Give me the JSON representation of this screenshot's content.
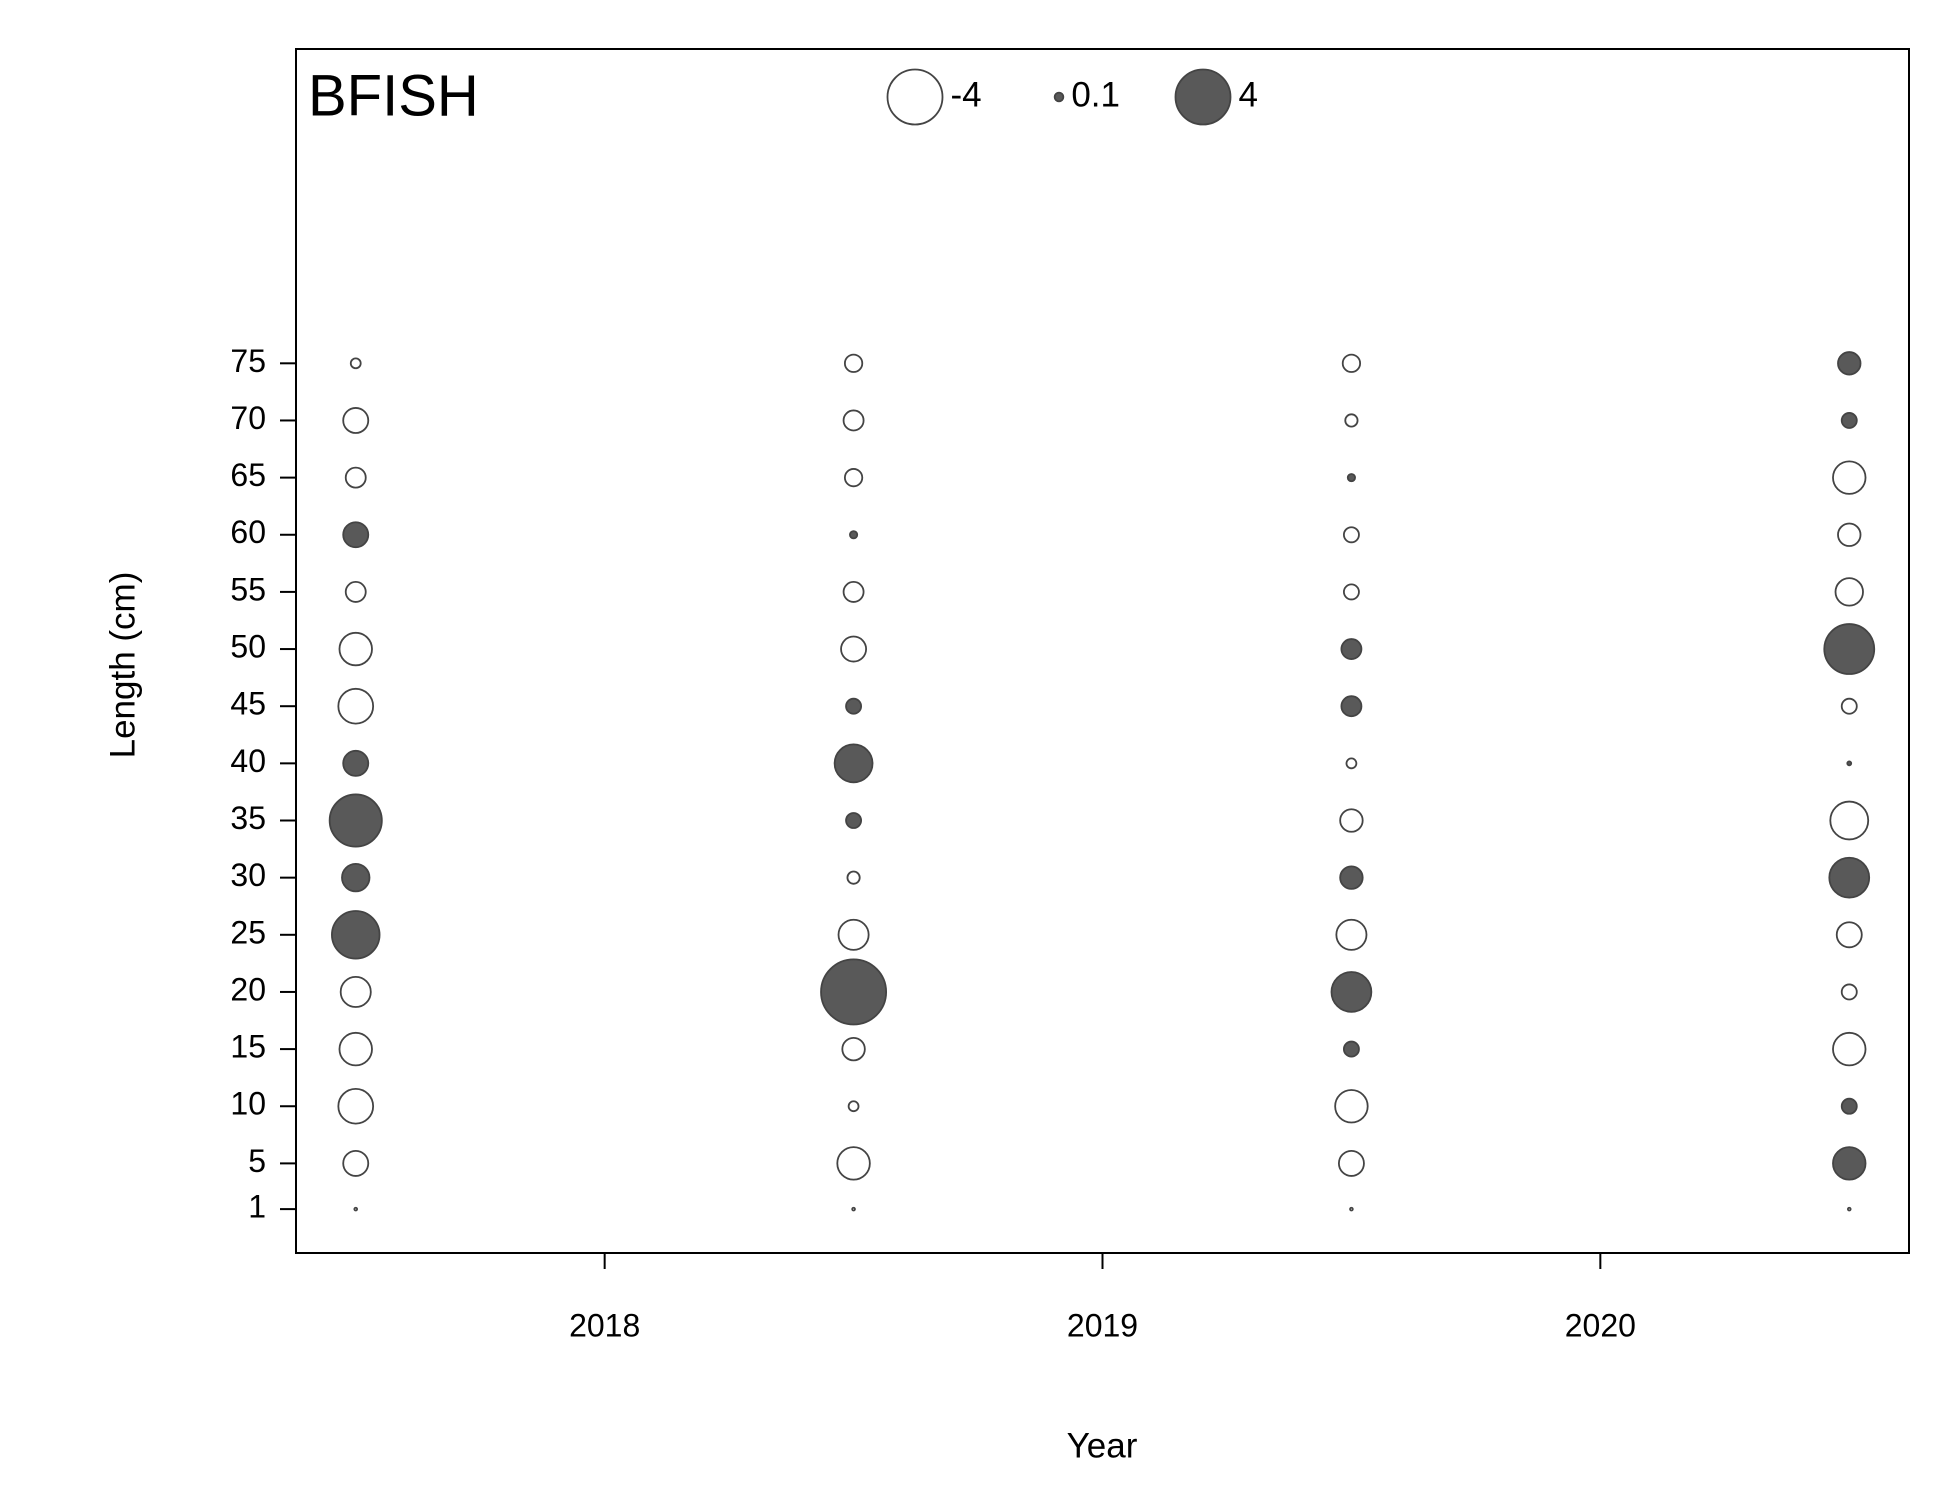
{
  "chart_data": {
    "type": "bubble",
    "title": "BFISH",
    "x_label": "Year",
    "y_label": "Length (cm)",
    "xlim": [
      2017.38,
      2020.62
    ],
    "xticks": [
      2018,
      2019,
      2020
    ],
    "ylim": [
      -2.84,
      102.5
    ],
    "yticks": [
      1,
      5,
      10,
      15,
      20,
      25,
      30,
      35,
      40,
      45,
      50,
      55,
      60,
      65,
      70,
      75
    ],
    "positive_color": "#595959",
    "negative_color": "#ffffff",
    "legend": {
      "values": [
        -4,
        0.1,
        4
      ]
    },
    "series": [
      {
        "x": [
          2017.5,
          2017.5,
          2017.5,
          2017.5,
          2017.5,
          2017.5,
          2017.5,
          2017.5,
          2017.5,
          2017.5,
          2017.5,
          2017.5,
          2017.5,
          2017.5,
          2017.5,
          2017.5,
          2018.5,
          2018.5,
          2018.5,
          2018.5,
          2018.5,
          2018.5,
          2018.5,
          2018.5,
          2018.5,
          2018.5,
          2018.5,
          2018.5,
          2018.5,
          2018.5,
          2018.5,
          2018.5,
          2019.5,
          2019.5,
          2019.5,
          2019.5,
          2019.5,
          2019.5,
          2019.5,
          2019.5,
          2019.5,
          2019.5,
          2019.5,
          2019.5,
          2019.5,
          2019.5,
          2019.5,
          2019.5,
          2020.5,
          2020.5,
          2020.5,
          2020.5,
          2020.5,
          2020.5,
          2020.5,
          2020.5,
          2020.5,
          2020.5,
          2020.5,
          2020.5,
          2020.5,
          2020.5,
          2020.5,
          2020.5
        ],
        "y": [
          75,
          70,
          65,
          60,
          55,
          50,
          45,
          40,
          35,
          30,
          25,
          20,
          15,
          10,
          5,
          1,
          75,
          70,
          65,
          60,
          55,
          50,
          45,
          40,
          35,
          30,
          25,
          20,
          15,
          10,
          5,
          1,
          75,
          70,
          65,
          60,
          55,
          50,
          45,
          40,
          35,
          30,
          25,
          20,
          15,
          10,
          5,
          1,
          75,
          70,
          65,
          60,
          55,
          50,
          45,
          40,
          35,
          30,
          25,
          20,
          15,
          10,
          5,
          1
        ],
        "sizes": [
          -0.13,
          -0.83,
          -0.53,
          0.83,
          -0.53,
          -1.4,
          -1.6,
          0.83,
          3.6,
          1.0,
          3.0,
          -1.2,
          -1.4,
          -1.6,
          -0.83,
          -0.01,
          -0.4,
          -0.53,
          -0.4,
          0.07,
          -0.53,
          -0.83,
          0.3,
          1.9,
          0.3,
          -0.2,
          -1.2,
          5.6,
          -0.67,
          -0.13,
          -1.4,
          -0.01,
          -0.4,
          -0.2,
          0.07,
          -0.3,
          -0.3,
          0.53,
          0.53,
          -0.13,
          -0.67,
          0.67,
          -1.2,
          2.1,
          0.3,
          -1.4,
          -0.83,
          -0.01,
          0.67,
          0.3,
          -1.4,
          -0.67,
          -1.0,
          3.3,
          -0.3,
          0.02,
          -1.9,
          2.1,
          -0.83,
          -0.3,
          -1.4,
          0.3,
          1.4,
          -0.01
        ]
      }
    ]
  }
}
